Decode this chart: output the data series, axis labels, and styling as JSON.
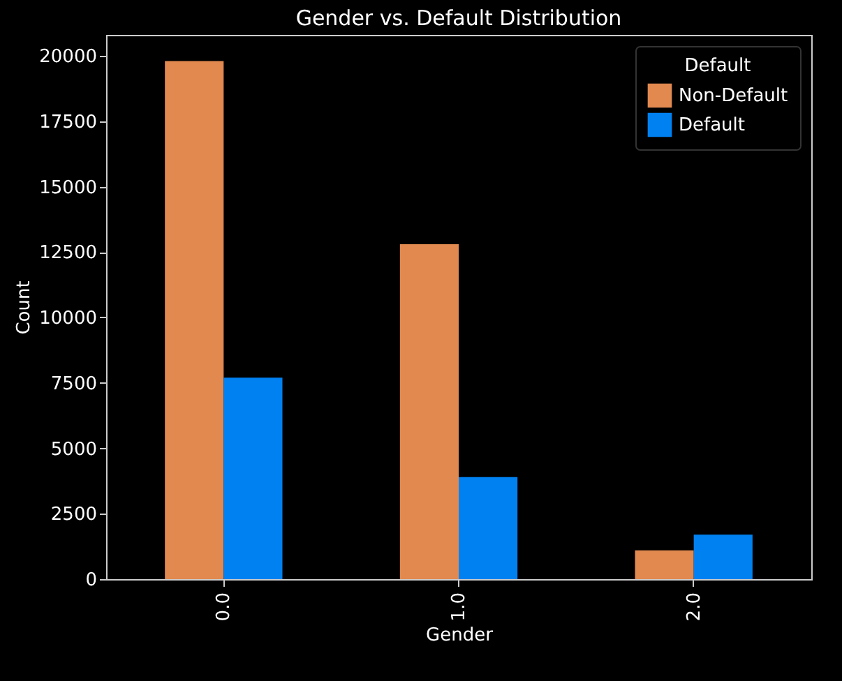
{
  "chart_data": {
    "type": "bar",
    "title": "Gender vs. Default Distribution",
    "xlabel": "Gender",
    "ylabel": "Count",
    "legend_title": "Default",
    "categories": [
      "0.0",
      "1.0",
      "2.0"
    ],
    "series": [
      {
        "name": "Non-Default",
        "color": "#e1894f",
        "values": [
          19800,
          12800,
          1100
        ]
      },
      {
        "name": "Default",
        "color": "#0081f1",
        "values": [
          7700,
          3900,
          1700
        ]
      }
    ],
    "ylim": [
      0,
      20800
    ],
    "yticks": [
      0,
      2500,
      5000,
      7500,
      10000,
      12500,
      15000,
      17500,
      20000
    ],
    "grid": false,
    "legend": "top right"
  }
}
